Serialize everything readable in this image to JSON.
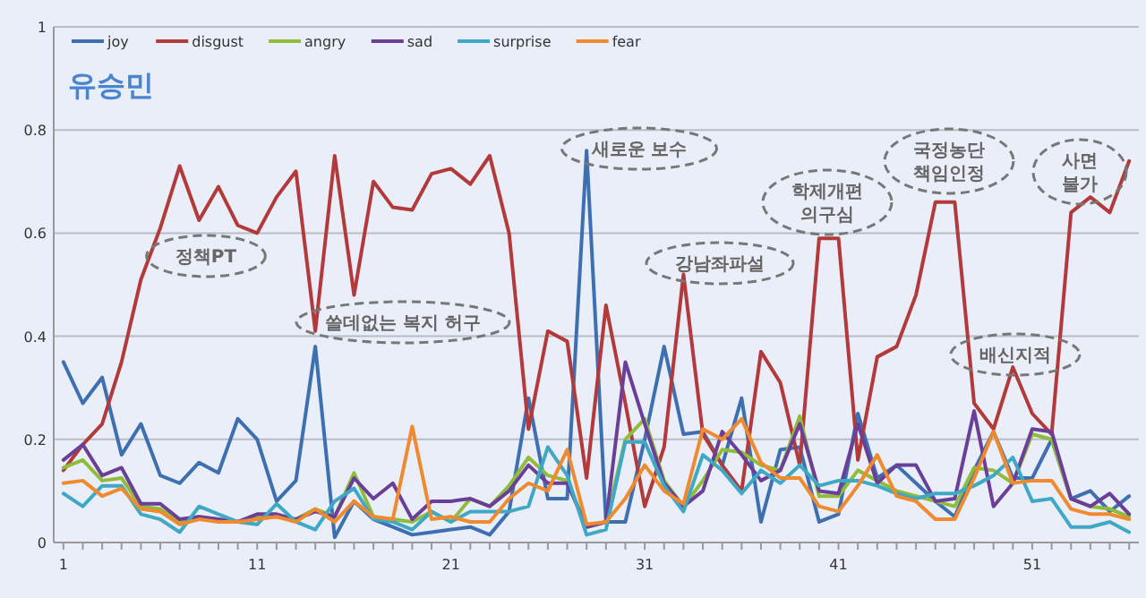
{
  "chart_data": {
    "type": "line",
    "title": "유승민",
    "x": [
      1,
      2,
      3,
      4,
      5,
      6,
      7,
      8,
      9,
      10,
      11,
      12,
      13,
      14,
      15,
      16,
      17,
      18,
      19,
      20,
      21,
      22,
      23,
      24,
      25,
      26,
      27,
      28,
      29,
      30,
      31,
      32,
      33,
      34,
      35,
      36,
      37,
      38,
      39,
      40,
      41,
      42,
      43,
      44,
      45,
      46,
      47,
      48,
      49,
      50,
      51,
      52,
      53,
      54,
      55,
      56
    ],
    "xlim": [
      0.5,
      56.5
    ],
    "xticks": [
      1,
      {
        "value": 2,
        "label": null
      },
      {
        "value": 3,
        "label": null
      },
      {
        "value": 4,
        "label": null
      },
      {
        "value": 5,
        "label": null
      },
      {
        "value": 6,
        "label": null
      },
      {
        "value": 7,
        "label": null
      },
      {
        "value": 8,
        "label": null
      },
      {
        "value": 9,
        "label": null
      },
      {
        "value": 10,
        "label": null
      },
      11,
      {
        "value": 12,
        "label": null
      },
      {
        "value": 13,
        "label": null
      },
      {
        "value": 14,
        "label": null
      },
      {
        "value": 15,
        "label": null
      },
      {
        "value": 16,
        "label": null
      },
      {
        "value": 17,
        "label": null
      },
      {
        "value": 18,
        "label": null
      },
      {
        "value": 19,
        "label": null
      },
      {
        "value": 20,
        "label": null
      },
      21,
      {
        "value": 22,
        "label": null
      },
      {
        "value": 23,
        "label": null
      },
      {
        "value": 24,
        "label": null
      },
      {
        "value": 25,
        "label": null
      },
      {
        "value": 26,
        "label": null
      },
      {
        "value": 27,
        "label": null
      },
      {
        "value": 28,
        "label": null
      },
      {
        "value": 29,
        "label": null
      },
      {
        "value": 30,
        "label": null
      },
      31,
      {
        "value": 32,
        "label": null
      },
      {
        "value": 33,
        "label": null
      },
      {
        "value": 34,
        "label": null
      },
      {
        "value": 35,
        "label": null
      },
      {
        "value": 36,
        "label": null
      },
      {
        "value": 37,
        "label": null
      },
      {
        "value": 38,
        "label": null
      },
      {
        "value": 39,
        "label": null
      },
      {
        "value": 40,
        "label": null
      },
      41,
      {
        "value": 42,
        "label": null
      },
      {
        "value": 43,
        "label": null
      },
      {
        "value": 44,
        "label": null
      },
      {
        "value": 45,
        "label": null
      },
      {
        "value": 46,
        "label": null
      },
      {
        "value": 47,
        "label": null
      },
      {
        "value": 48,
        "label": null
      },
      {
        "value": 49,
        "label": null
      },
      {
        "value": 50,
        "label": null
      },
      51,
      {
        "value": 52,
        "label": null
      },
      {
        "value": 53,
        "label": null
      },
      {
        "value": 54,
        "label": null
      },
      {
        "value": 55,
        "label": null
      },
      {
        "value": 56,
        "label": null
      }
    ],
    "ylim": [
      0,
      1
    ],
    "yticks": [
      0,
      0.2,
      0.4,
      0.6,
      0.8,
      1
    ],
    "grid": "y",
    "legend": "top left",
    "marker": "none",
    "line_style": "solid",
    "series": [
      {
        "name": "joy",
        "color": "#3e6fb0",
        "values": [
          0.35,
          0.27,
          0.32,
          0.17,
          0.23,
          0.13,
          0.115,
          0.155,
          0.135,
          0.24,
          0.2,
          0.08,
          0.12,
          0.38,
          0.01,
          0.08,
          0.045,
          0.03,
          0.015,
          0.02,
          0.025,
          0.03,
          0.015,
          0.06,
          0.28,
          0.085,
          0.085,
          0.76,
          0.04,
          0.04,
          0.2,
          0.38,
          0.21,
          0.215,
          0.15,
          0.28,
          0.04,
          0.18,
          0.185,
          0.04,
          0.055,
          0.25,
          0.125,
          0.15,
          0.115,
          0.08,
          0.05,
          0.14,
          0.215,
          0.125,
          0.125,
          0.2,
          0.085,
          0.1,
          0.06,
          0.09
        ]
      },
      {
        "name": "disgust",
        "color": "#b23a3a",
        "values": [
          0.14,
          0.19,
          0.23,
          0.35,
          0.51,
          0.61,
          0.73,
          0.625,
          0.69,
          0.615,
          0.6,
          0.67,
          0.72,
          0.41,
          0.75,
          0.48,
          0.7,
          0.65,
          0.645,
          0.715,
          0.725,
          0.695,
          0.75,
          0.6,
          0.22,
          0.41,
          0.39,
          0.125,
          0.46,
          0.27,
          0.07,
          0.185,
          0.52,
          0.21,
          0.15,
          0.1,
          0.37,
          0.31,
          0.15,
          0.59,
          0.59,
          0.16,
          0.36,
          0.38,
          0.48,
          0.66,
          0.66,
          0.27,
          0.22,
          0.34,
          0.25,
          0.21,
          0.64,
          0.67,
          0.64,
          0.74
        ]
      },
      {
        "name": "angry",
        "color": "#8fbc3a",
        "values": [
          0.145,
          0.16,
          0.12,
          0.125,
          0.07,
          0.065,
          0.04,
          0.05,
          0.045,
          0.04,
          0.05,
          0.05,
          0.045,
          0.065,
          0.05,
          0.135,
          0.05,
          0.045,
          0.04,
          0.06,
          0.04,
          0.085,
          0.07,
          0.11,
          0.165,
          0.13,
          0.12,
          0.03,
          0.04,
          0.2,
          0.24,
          0.12,
          0.07,
          0.12,
          0.18,
          0.175,
          0.15,
          0.14,
          0.245,
          0.09,
          0.09,
          0.14,
          0.12,
          0.1,
          0.09,
          0.08,
          0.07,
          0.145,
          0.14,
          0.115,
          0.21,
          0.2,
          0.085,
          0.07,
          0.065,
          0.05
        ]
      },
      {
        "name": "sad",
        "color": "#6b3f98",
        "values": [
          0.16,
          0.19,
          0.13,
          0.145,
          0.075,
          0.075,
          0.045,
          0.05,
          0.045,
          0.04,
          0.055,
          0.055,
          0.045,
          0.06,
          0.05,
          0.125,
          0.085,
          0.115,
          0.045,
          0.08,
          0.08,
          0.085,
          0.07,
          0.1,
          0.15,
          0.115,
          0.115,
          0.03,
          0.04,
          0.35,
          0.23,
          0.115,
          0.07,
          0.1,
          0.215,
          0.17,
          0.12,
          0.14,
          0.23,
          0.1,
          0.095,
          0.23,
          0.115,
          0.15,
          0.15,
          0.08,
          0.085,
          0.255,
          0.07,
          0.115,
          0.22,
          0.215,
          0.085,
          0.07,
          0.095,
          0.055
        ]
      },
      {
        "name": "surprise",
        "color": "#3fa9c5",
        "values": [
          0.095,
          0.07,
          0.11,
          0.11,
          0.055,
          0.045,
          0.02,
          0.07,
          0.055,
          0.04,
          0.035,
          0.075,
          0.04,
          0.025,
          0.08,
          0.105,
          0.045,
          0.04,
          0.025,
          0.06,
          0.04,
          0.06,
          0.06,
          0.06,
          0.07,
          0.185,
          0.13,
          0.015,
          0.025,
          0.195,
          0.195,
          0.11,
          0.06,
          0.17,
          0.14,
          0.095,
          0.14,
          0.115,
          0.15,
          0.11,
          0.12,
          0.12,
          0.11,
          0.095,
          0.085,
          0.095,
          0.095,
          0.11,
          0.13,
          0.165,
          0.08,
          0.085,
          0.03,
          0.03,
          0.04,
          0.02
        ]
      },
      {
        "name": "fear",
        "color": "#ef8a2e",
        "values": [
          0.115,
          0.12,
          0.09,
          0.105,
          0.065,
          0.06,
          0.035,
          0.045,
          0.04,
          0.04,
          0.045,
          0.05,
          0.04,
          0.065,
          0.04,
          0.08,
          0.05,
          0.045,
          0.225,
          0.045,
          0.05,
          0.04,
          0.04,
          0.085,
          0.115,
          0.1,
          0.18,
          0.035,
          0.04,
          0.085,
          0.15,
          0.1,
          0.075,
          0.22,
          0.2,
          0.24,
          0.155,
          0.125,
          0.125,
          0.07,
          0.06,
          0.11,
          0.17,
          0.09,
          0.08,
          0.045,
          0.045,
          0.125,
          0.215,
          0.115,
          0.12,
          0.12,
          0.065,
          0.055,
          0.055,
          0.045
        ]
      }
    ],
    "annotations": [
      "정책PT",
      "쓸데없는 복지 허구",
      "새로운 보수",
      "강남좌파설",
      "학제개편\n의구심",
      "국정농단\n책임인정",
      "사면\n불가",
      "배신지적"
    ]
  }
}
